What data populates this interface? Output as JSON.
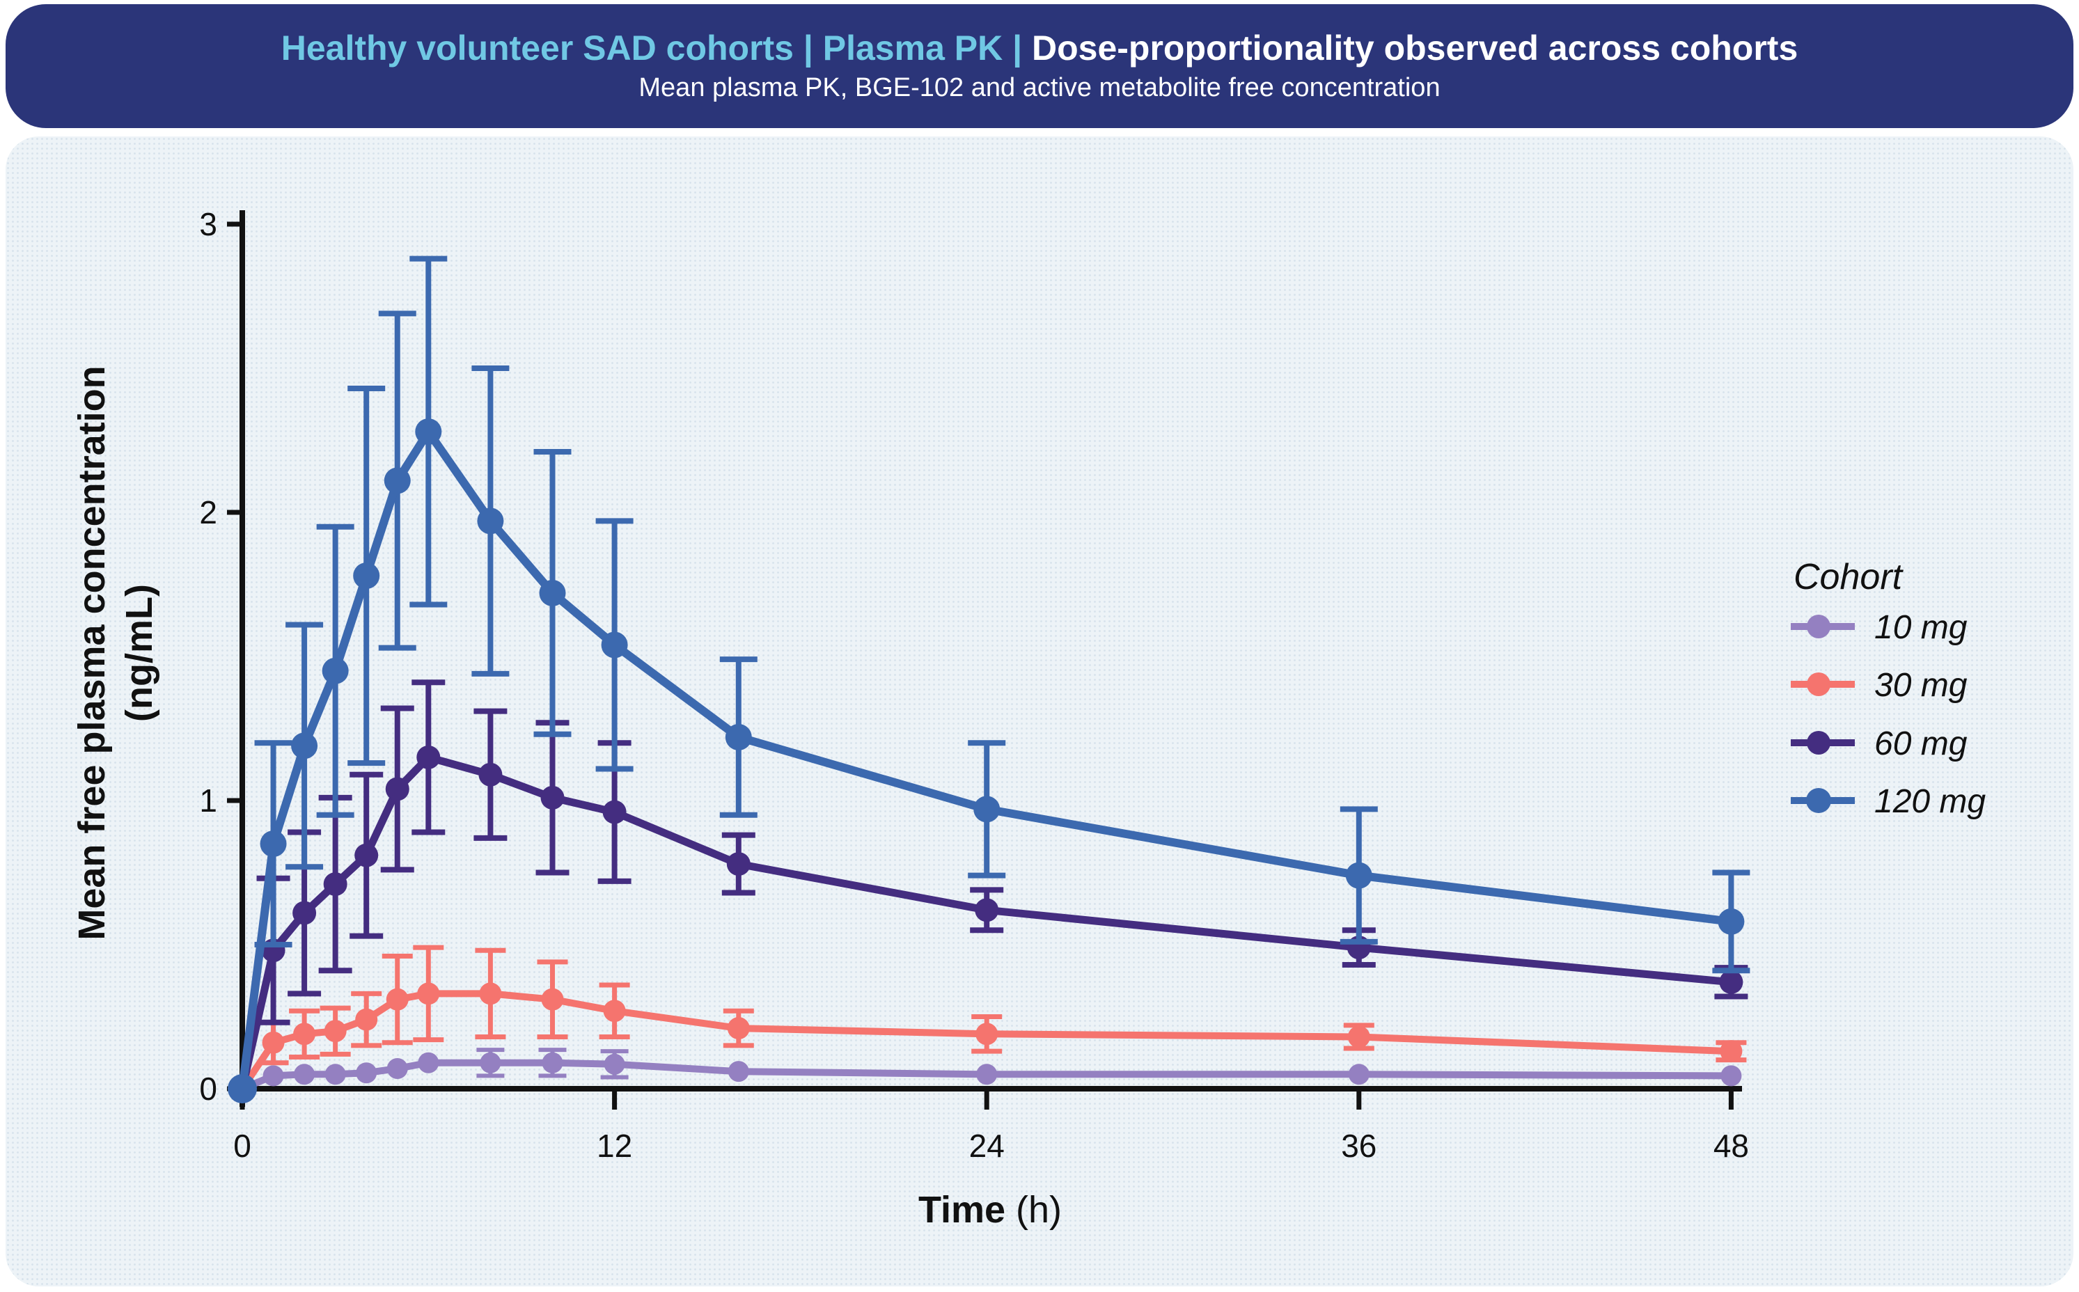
{
  "banner": {
    "title_highlight": "Healthy volunteer SAD cohorts | Plasma PK | ",
    "title_main": "Dose-proportionality observed across cohorts",
    "subtitle": "Mean plasma PK, BGE-102 and active metabolite free concentration",
    "bg_color": "#2b3579",
    "highlight_color": "#70c8e4",
    "text_color": "#ffffff"
  },
  "chart_data": {
    "type": "line",
    "title": "Mean plasma PK, BGE-102 and active metabolite free concentration",
    "xlabel_bold": "Time",
    "xlabel_unit": " (h)",
    "ylabel_line1": "Mean free plasma concentration",
    "ylabel_line2": "(ng/mL)",
    "xlim": [
      0,
      48
    ],
    "ylim": [
      0,
      3
    ],
    "xticks": [
      0,
      12,
      24,
      36,
      48
    ],
    "yticks": [
      0,
      1,
      2,
      3
    ],
    "grid": false,
    "legend_title": "Cohort",
    "legend_position": "right",
    "error_bars": true,
    "x": [
      0,
      1,
      2,
      3,
      4,
      5,
      6,
      8,
      10,
      12,
      16,
      24,
      36,
      48
    ],
    "series": [
      {
        "name": "10 mg",
        "color": "#9480c1",
        "values": [
          0,
          0.045,
          0.05,
          0.05,
          0.055,
          0.07,
          0.09,
          0.09,
          0.09,
          0.085,
          0.06,
          0.05,
          0.05,
          0.045
        ],
        "err": [
          0,
          0.01,
          0.01,
          0.01,
          0.015,
          0.02,
          0.02,
          0.045,
          0.045,
          0.045,
          0.02,
          0.02,
          0.02,
          0.02
        ]
      },
      {
        "name": "30 mg",
        "color": "#f5746e",
        "values": [
          0,
          0.16,
          0.19,
          0.2,
          0.24,
          0.31,
          0.33,
          0.33,
          0.31,
          0.27,
          0.21,
          0.19,
          0.18,
          0.13
        ],
        "err": [
          0,
          0.07,
          0.08,
          0.08,
          0.09,
          0.15,
          0.16,
          0.15,
          0.13,
          0.09,
          0.06,
          0.06,
          0.04,
          0.03
        ]
      },
      {
        "name": "60 mg",
        "color": "#442d80",
        "values": [
          0,
          0.48,
          0.61,
          0.71,
          0.81,
          1.04,
          1.15,
          1.09,
          1.01,
          0.96,
          0.78,
          0.62,
          0.49,
          0.37
        ],
        "err": [
          0,
          0.25,
          0.28,
          0.3,
          0.28,
          0.28,
          0.26,
          0.22,
          0.26,
          0.24,
          0.1,
          0.07,
          0.06,
          0.05
        ]
      },
      {
        "name": "120 mg",
        "color": "#3c69af",
        "values": [
          0,
          0.85,
          1.19,
          1.45,
          1.78,
          2.11,
          2.28,
          1.97,
          1.72,
          1.54,
          1.22,
          0.97,
          0.74,
          0.58
        ],
        "err": [
          0,
          0.35,
          0.42,
          0.5,
          0.65,
          0.58,
          0.6,
          0.53,
          0.49,
          0.43,
          0.27,
          0.23,
          0.23,
          0.17
        ]
      }
    ],
    "ink_color": "#111111"
  }
}
